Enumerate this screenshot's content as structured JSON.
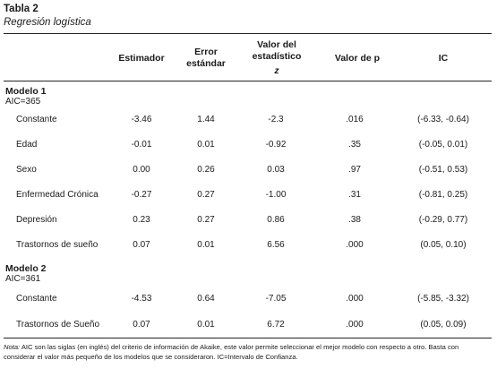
{
  "table": {
    "label": "Tabla 2",
    "subtitle": "Regresión logística"
  },
  "header": {
    "estimador": "Estimador",
    "error_line1": "Error",
    "error_line2": "estándar",
    "valor_est_line1": "Valor del",
    "valor_est_line2": "estadístico",
    "valor_est_line3": "z",
    "valor_p": "Valor de p",
    "ic": "IC"
  },
  "models": [
    {
      "title": "Modelo 1",
      "aic": "AIC=365",
      "rows": [
        {
          "label": "Constante",
          "est": "-3.46",
          "err": "1.44",
          "z": "-2.3",
          "p": ".016",
          "ic": "(-6.33, -0.64)"
        },
        {
          "label": "Edad",
          "est": "-0.01",
          "err": "0.01",
          "z": "-0.92",
          "p": ".35",
          "ic": "(-0.05, 0.01)"
        },
        {
          "label": "Sexo",
          "est": "0.00",
          "err": "0.26",
          "z": "0.03",
          "p": ".97",
          "ic": "(-0.51, 0.53)"
        },
        {
          "label": "Enfermedad Crónica",
          "est": "-0.27",
          "err": "0.27",
          "z": "-1.00",
          "p": ".31",
          "ic": "(-0.81, 0.25)"
        },
        {
          "label": "Depresión",
          "est": "0.23",
          "err": "0.27",
          "z": "0.86",
          "p": ".38",
          "ic": "(-0.29, 0.77)"
        },
        {
          "label": "Trastornos de sueño",
          "est": "0.07",
          "err": "0.01",
          "z": "6.56",
          "p": ".000",
          "ic": "(0.05, 0.10)"
        }
      ]
    },
    {
      "title": "Modelo 2",
      "aic": "AIC=361",
      "rows": [
        {
          "label": "Constante",
          "est": "-4.53",
          "err": "0.64",
          "z": "-7.05",
          "p": ".000",
          "ic": "(-5.85, -3.32)"
        },
        {
          "label": "Trastornos de Sueño",
          "est": "0.07",
          "err": "0.01",
          "z": "6.72",
          "p": ".000",
          "ic": "(0.05, 0.09)"
        }
      ]
    }
  ],
  "note": {
    "lead": "Nota:",
    "text": " AIC son las siglas (en inglés) del criterio de información de Akaike, este valor permite seleccionar el mejor modelo con respecto a otro. Basta con considerar el valor más pequeño de los modelos que se consideraron. IC=Intervalo de Confianza."
  }
}
